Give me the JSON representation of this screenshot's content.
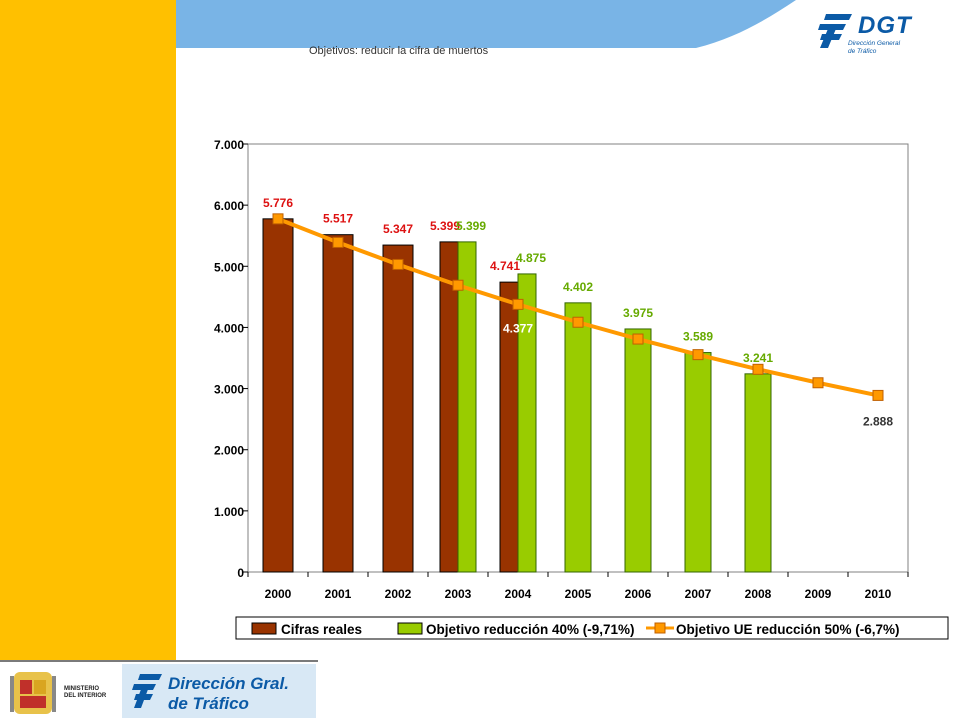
{
  "header": {
    "subtitle": "Objetivos: reducir la cifra de muertos",
    "logo_name": "DGT",
    "logo_sub_1": "Dirección General",
    "logo_sub_2": "de Tráfico"
  },
  "footer": {
    "ministry_1": "MINISTERIO",
    "ministry_2": "DEL INTERIOR",
    "dgt_line_1": "Dirección Gral.",
    "dgt_line_2": "de Tráfico"
  },
  "colors": {
    "real": "#993300",
    "target40": "#99cc00",
    "ue": "#ff9900",
    "label_real": "#dd1111",
    "label_target": "#66aa00",
    "label_ue": "#333333",
    "band": "#ffc000",
    "brand_blue": "#0b5aa6"
  },
  "chart_data": {
    "type": "bar",
    "title": "",
    "xlabel": "",
    "ylabel": "",
    "ylim": [
      0,
      7000
    ],
    "yticks": [
      0,
      1000,
      2000,
      3000,
      4000,
      5000,
      6000,
      7000
    ],
    "ytick_labels": [
      "0",
      "1.000",
      "2.000",
      "3.000",
      "4.000",
      "5.000",
      "6.000",
      "7.000"
    ],
    "categories": [
      "2000",
      "2001",
      "2002",
      "2003",
      "2004",
      "2005",
      "2006",
      "2007",
      "2008",
      "2009",
      "2010"
    ],
    "legend_position": "bottom",
    "series": [
      {
        "name": "Cifras reales",
        "kind": "bar",
        "values": [
          5776,
          5517,
          5347,
          5399,
          4741,
          null,
          null,
          null,
          null,
          null,
          null
        ],
        "labels": [
          "5.776",
          "5.517",
          "5.347",
          "5.399",
          "4.741",
          "",
          "",
          "",
          "",
          "",
          ""
        ]
      },
      {
        "name": "Objetivo reducción 40% (-9,71%)",
        "kind": "bar",
        "values": [
          null,
          null,
          null,
          5399,
          4875,
          4402,
          3975,
          3589,
          3241,
          null,
          null
        ],
        "labels": [
          "",
          "",
          "",
          "5.399",
          "4.875",
          "4.402",
          "3.975",
          "3.589",
          "3.241",
          "",
          ""
        ]
      },
      {
        "name": "Objetivo UE reducción 50% (-6,7%)",
        "kind": "line",
        "values": [
          5776,
          5390,
          5030,
          4690,
          4377,
          4085,
          3810,
          3555,
          3315,
          3095,
          2888
        ],
        "labels": [
          "",
          "",
          "",
          "",
          "4.377",
          "",
          "",
          "",
          "",
          "",
          "2.888"
        ]
      }
    ]
  }
}
